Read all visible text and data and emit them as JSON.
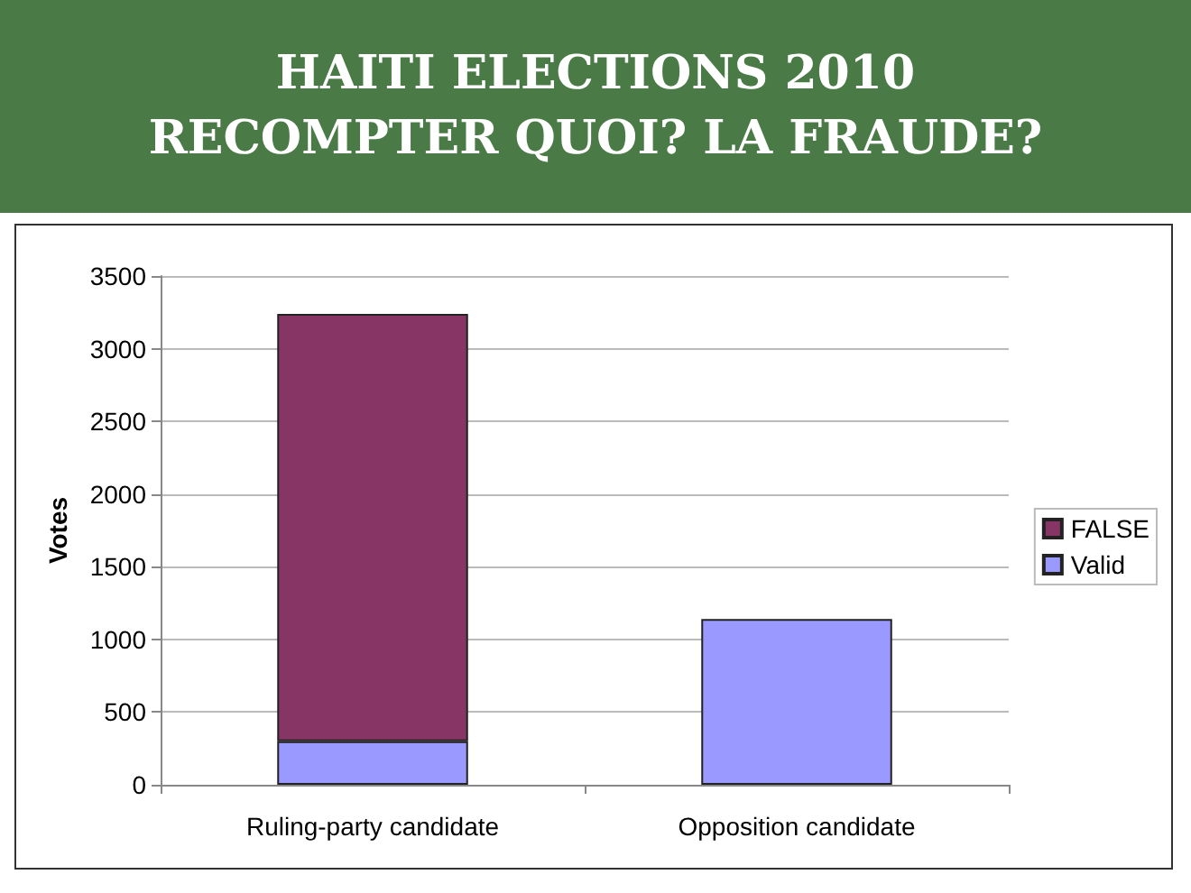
{
  "chart_data": {
    "type": "bar",
    "title": "HAITI ELECTIONS 2010\nRECOMPTER QUOI? LA FRAUDE?",
    "ylabel": "Votes",
    "categories": [
      "Ruling-party candidate",
      "Opposition candidate"
    ],
    "stacked": true,
    "series": [
      {
        "name": "Valid",
        "color": "#9999ff",
        "values": [
          300,
          1140
        ]
      },
      {
        "name": "FALSE",
        "color": "#873564",
        "values": [
          2940,
          null
        ]
      }
    ],
    "ylim": [
      0,
      3500
    ],
    "yticks": [
      0,
      500,
      1000,
      1500,
      2000,
      2500,
      3000,
      3500
    ],
    "grid": "y",
    "legend": "right"
  }
}
